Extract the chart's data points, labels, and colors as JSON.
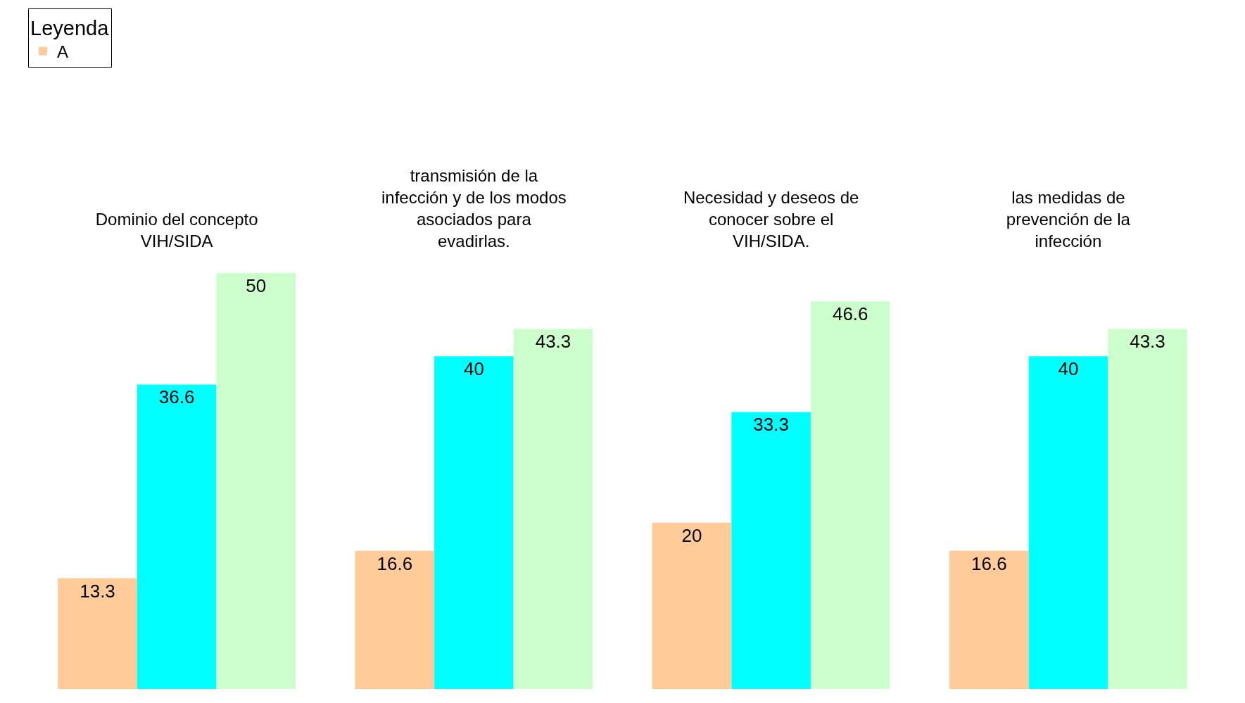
{
  "chart_data": {
    "type": "bar",
    "categories": [
      "Dominio del concepto VIH/SIDA",
      "transmisión de la infección y de los modos asociados para evadirlas.",
      "Necesidad y deseos de conocer sobre el VIH/SIDA.",
      "las medidas de prevención de la infección"
    ],
    "series": [
      {
        "name": "A",
        "color": "#ffcc99",
        "values": [
          13.3,
          16.6,
          20,
          16.6
        ]
      },
      {
        "color": "#00ffff",
        "values": [
          36.6,
          40,
          33.3,
          40
        ]
      },
      {
        "color": "#ccffcc",
        "values": [
          50,
          43.3,
          46.6,
          43.3
        ]
      }
    ],
    "legend_title": "Leyenda",
    "legend": "top left",
    "data_labels": true
  }
}
